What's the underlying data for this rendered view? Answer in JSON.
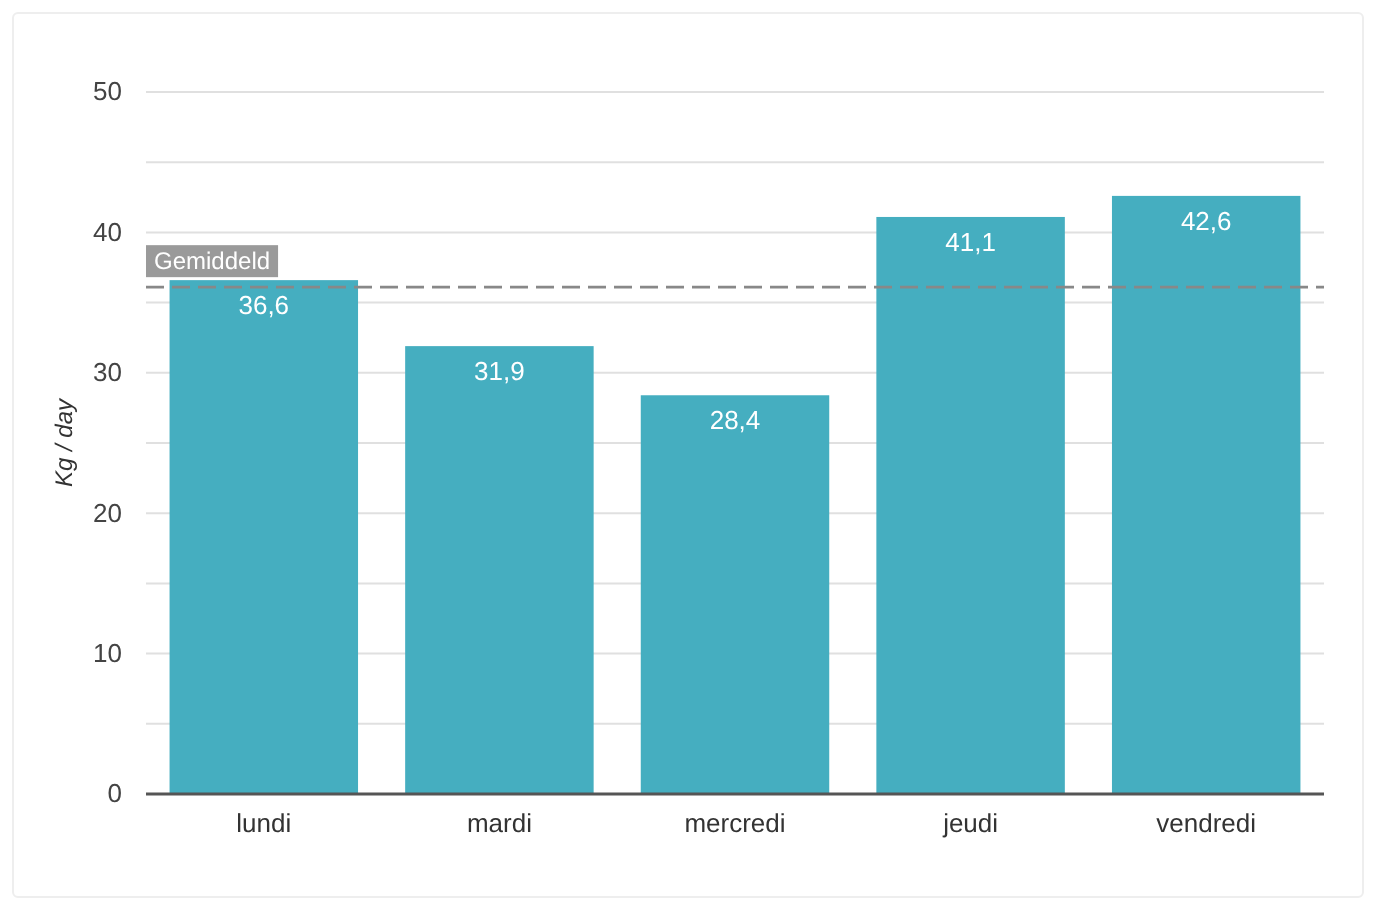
{
  "chart_data": {
    "type": "bar",
    "ylabel": "Kg / day",
    "categories": [
      "lundi",
      "mardi",
      "mercredi",
      "jeudi",
      "vendredi"
    ],
    "values": [
      36.6,
      31.9,
      28.4,
      41.1,
      42.6
    ],
    "value_labels": [
      "36,6",
      "31,9",
      "28,4",
      "41,1",
      "42,6"
    ],
    "color": "#45aec0",
    "ylim": [
      0,
      50
    ],
    "yticks": [
      0,
      {
        "value": 5,
        "label": null
      },
      10,
      {
        "value": 15,
        "label": null
      },
      20,
      {
        "value": 25,
        "label": null
      },
      30,
      {
        "value": 35,
        "label": null
      },
      40,
      {
        "value": 45,
        "label": null
      },
      50
    ],
    "grid": true,
    "ref_lines": [
      {
        "axis": "y",
        "value": 36.1,
        "label": "Gemiddeld",
        "color": "#888888",
        "line_style": "dashed"
      }
    ]
  }
}
